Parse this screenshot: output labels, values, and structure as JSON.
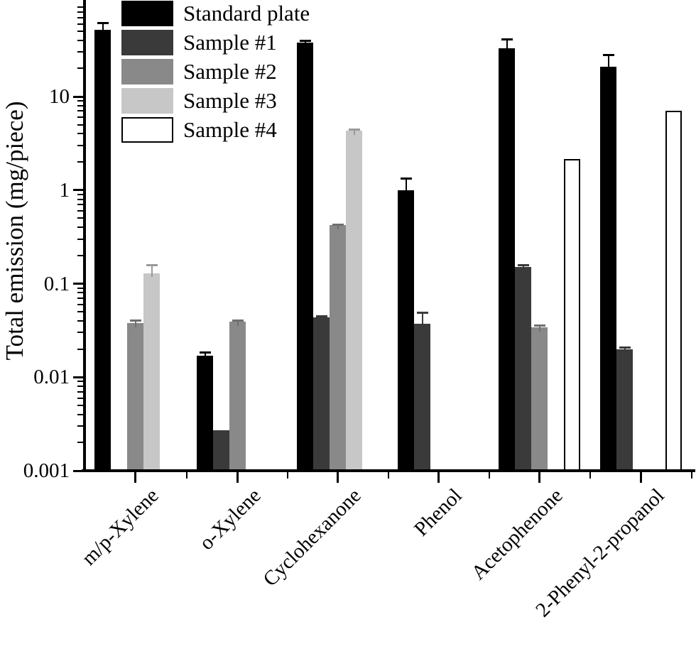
{
  "chart_data": {
    "type": "bar",
    "scale_y": "log",
    "title": "",
    "xlabel": "",
    "ylabel": "Total emission (mg/piece)",
    "unit": "mg/piece",
    "ylim": [
      0.001,
      100
    ],
    "grid": false,
    "legend_position": "top-left",
    "categories": [
      "m/p-Xylene",
      "o-Xylene",
      "Cyclohexanone",
      "Phenol",
      "Acetophenone",
      "2-Phenyl-2-propanol"
    ],
    "y_ticks": [
      {
        "label": "10",
        "value": 10
      },
      {
        "label": "1",
        "value": 1
      },
      {
        "label": "0.1",
        "value": 0.1
      },
      {
        "label": "0.01",
        "value": 0.01
      },
      {
        "label": "0.001",
        "value": 0.001
      }
    ],
    "series": [
      {
        "name": "Standard plate",
        "color": "#000000",
        "border": "#000000",
        "err_color": "#000000",
        "values": [
          52,
          0.017,
          38,
          1.0,
          33,
          21
        ],
        "error_top": [
          62,
          0.0185,
          40,
          1.35,
          41,
          28
        ]
      },
      {
        "name": "Sample #1",
        "color": "#3a3a3a",
        "border": "#3a3a3a",
        "err_color": "#3a3a3a",
        "values": [
          null,
          0.0027,
          0.044,
          0.037,
          0.15,
          0.02
        ],
        "error_top": [
          null,
          null,
          0.045,
          0.049,
          0.16,
          0.021
        ]
      },
      {
        "name": "Sample #2",
        "color": "#898989",
        "border": "#898989",
        "err_color": "#6f6f6f",
        "values": [
          0.038,
          0.039,
          0.42,
          null,
          0.034,
          null
        ],
        "error_top": [
          0.041,
          0.041,
          0.43,
          null,
          0.036,
          null
        ]
      },
      {
        "name": "Sample #3",
        "color": "#c7c7c7",
        "border": "#c7c7c7",
        "err_color": "#9a9a9a",
        "values": [
          0.13,
          null,
          4.3,
          null,
          null,
          null
        ],
        "error_top": [
          0.16,
          null,
          4.5,
          null,
          null,
          null
        ]
      },
      {
        "name": "Sample #4",
        "color": "#ffffff",
        "border": "#000000",
        "err_color": "#000000",
        "values": [
          null,
          null,
          null,
          null,
          2.15,
          7.0
        ],
        "error_top": [
          null,
          null,
          null,
          null,
          null,
          null
        ]
      }
    ]
  }
}
